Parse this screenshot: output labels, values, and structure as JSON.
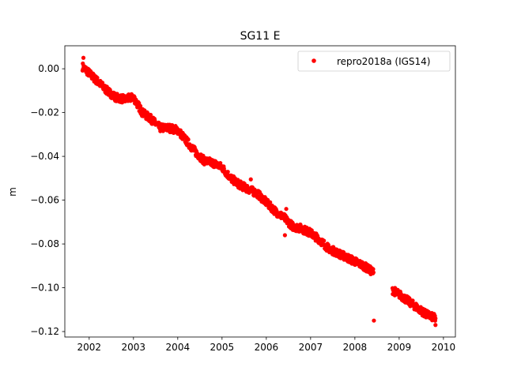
{
  "chart_data": {
    "type": "scatter",
    "title": "SG11 E",
    "xlabel": "",
    "ylabel": "m",
    "xlim": [
      2001.45,
      2010.27
    ],
    "ylim": [
      -0.1225,
      0.0105
    ],
    "xticks": [
      2002,
      2003,
      2004,
      2005,
      2006,
      2007,
      2008,
      2009,
      2010
    ],
    "xtick_labels": [
      "2002",
      "2003",
      "2004",
      "2005",
      "2006",
      "2007",
      "2008",
      "2009",
      "2010"
    ],
    "yticks": [
      0.0,
      -0.02,
      -0.04,
      -0.06,
      -0.08,
      -0.1,
      -0.12
    ],
    "ytick_labels": [
      "0.00",
      "−0.02",
      "−0.04",
      "−0.06",
      "−0.08",
      "−0.10",
      "−0.12"
    ],
    "grid": false,
    "legend": {
      "placement": "top-right",
      "entries": [
        "repro2018a (IGS14)"
      ]
    },
    "series": [
      {
        "name": "repro2018a (IGS14)",
        "color": "#ff0000",
        "band_halfwidth": 0.0018,
        "segments": [
          [
            [
              2001.85,
              0.001
            ],
            [
              2002.0,
              -0.002
            ],
            [
              2002.2,
              -0.006
            ],
            [
              2002.4,
              -0.01
            ],
            [
              2002.6,
              -0.013
            ],
            [
              2002.8,
              -0.014
            ],
            [
              2003.0,
              -0.013
            ],
            [
              2003.2,
              -0.02
            ],
            [
              2003.4,
              -0.023
            ],
            [
              2003.6,
              -0.027
            ],
            [
              2003.8,
              -0.027
            ],
            [
              2004.0,
              -0.028
            ],
            [
              2004.2,
              -0.033
            ],
            [
              2004.4,
              -0.038
            ],
            [
              2004.6,
              -0.042
            ],
            [
              2004.8,
              -0.043
            ],
            [
              2005.0,
              -0.045
            ],
            [
              2005.2,
              -0.05
            ],
            [
              2005.4,
              -0.053
            ],
            [
              2005.6,
              -0.055
            ],
            [
              2005.8,
              -0.057
            ],
            [
              2006.0,
              -0.061
            ],
            [
              2006.2,
              -0.065
            ],
            [
              2006.4,
              -0.068
            ],
            [
              2006.6,
              -0.072
            ],
            [
              2006.8,
              -0.073
            ],
            [
              2007.0,
              -0.075
            ],
            [
              2007.2,
              -0.078
            ],
            [
              2007.4,
              -0.082
            ],
            [
              2007.6,
              -0.084
            ],
            [
              2007.8,
              -0.086
            ],
            [
              2008.0,
              -0.088
            ],
            [
              2008.2,
              -0.09
            ],
            [
              2008.42,
              -0.093
            ]
          ],
          [
            [
              2008.85,
              -0.101
            ],
            [
              2009.0,
              -0.103
            ],
            [
              2009.2,
              -0.106
            ],
            [
              2009.4,
              -0.109
            ],
            [
              2009.6,
              -0.112
            ],
            [
              2009.82,
              -0.114
            ]
          ]
        ],
        "outliers": [
          [
            2008.43,
            -0.115
          ],
          [
            2005.65,
            -0.0505
          ],
          [
            2006.45,
            -0.064
          ],
          [
            2001.87,
            0.005
          ],
          [
            2006.42,
            -0.076
          ],
          [
            2009.82,
            -0.117
          ]
        ]
      }
    ]
  }
}
